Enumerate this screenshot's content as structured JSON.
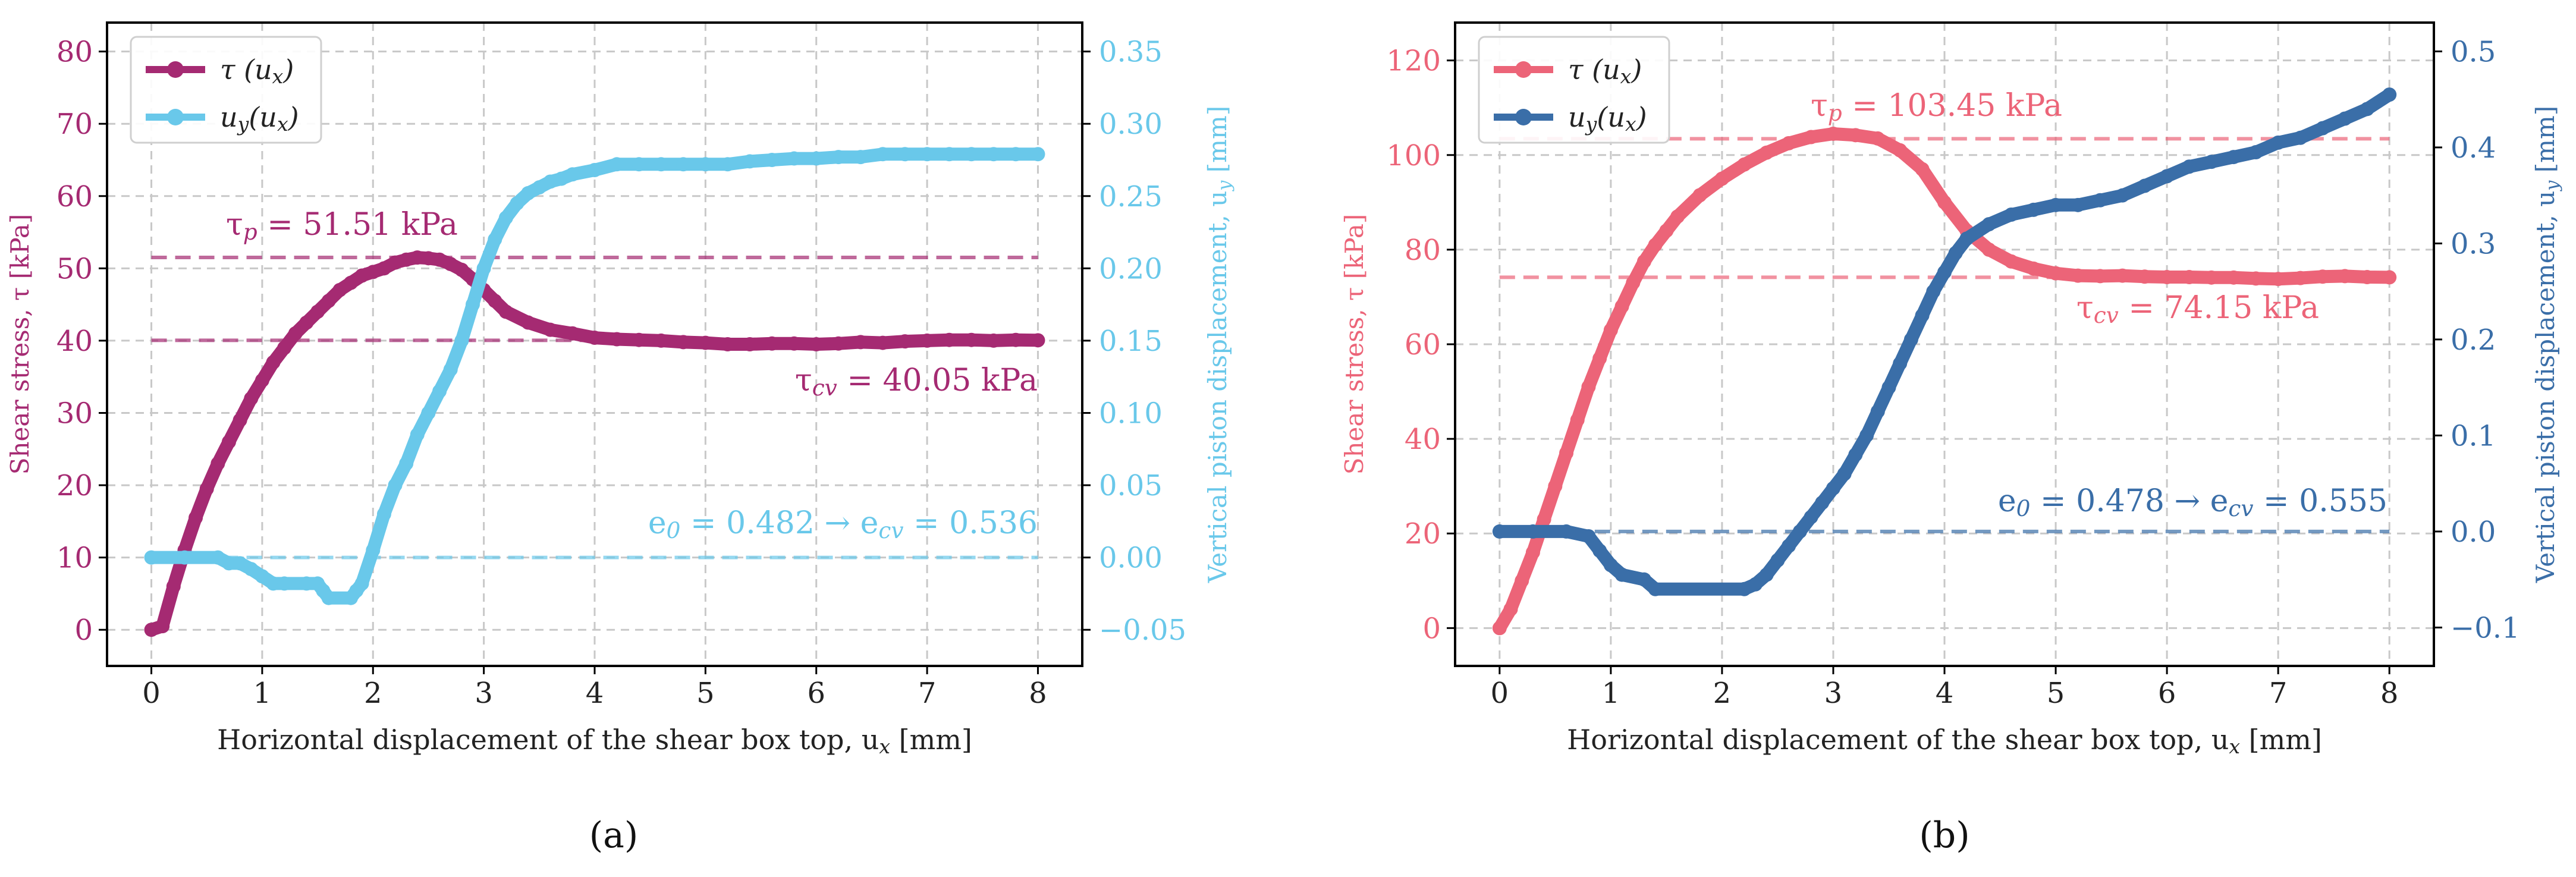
{
  "figure": {
    "panels": [
      {
        "id": "a",
        "caption": "(a)"
      },
      {
        "id": "b",
        "caption": "(b)"
      }
    ]
  },
  "chart_data": [
    {
      "type": "line",
      "panel": "a",
      "caption": "(a)",
      "title": "",
      "xlabel": "Horizontal displacement of the shear box top, u_x [mm]",
      "ylabel_left": "Shear stress, τ [kPa]",
      "ylabel_right": "Vertical piston displacement, u_y [mm]",
      "xlim": [
        -0.4,
        8.4
      ],
      "ylim_left": [
        -5,
        84
      ],
      "ylim_right": [
        -0.075,
        0.37
      ],
      "xticks": [
        0,
        1,
        2,
        3,
        4,
        5,
        6,
        7,
        8
      ],
      "yticks_left": [
        0,
        10,
        20,
        30,
        40,
        50,
        60,
        70,
        80
      ],
      "yticks_right": [
        -0.05,
        0.0,
        0.05,
        0.1,
        0.15,
        0.2,
        0.25,
        0.3,
        0.35
      ],
      "ytick_labels_right": [
        "−0.05",
        "0.00",
        "0.05",
        "0.10",
        "0.15",
        "0.20",
        "0.25",
        "0.30",
        "0.35"
      ],
      "grid": true,
      "legend": {
        "position": "top-left",
        "entries": [
          "τ (u_x)",
          "u_y(u_x)"
        ]
      },
      "colors": {
        "tau": "#a52a72",
        "uy": "#69c8ea"
      },
      "series": [
        {
          "name": "τ (u_x)",
          "axis": "left",
          "x": [
            0,
            0.1,
            0.2,
            0.3,
            0.4,
            0.5,
            0.6,
            0.7,
            0.8,
            0.9,
            1.0,
            1.1,
            1.2,
            1.3,
            1.4,
            1.5,
            1.6,
            1.7,
            1.8,
            1.9,
            2.0,
            2.1,
            2.2,
            2.3,
            2.4,
            2.5,
            2.6,
            2.7,
            2.8,
            2.9,
            3.0,
            3.1,
            3.2,
            3.4,
            3.6,
            3.8,
            4.0,
            4.2,
            4.4,
            4.6,
            4.8,
            5.0,
            5.2,
            5.4,
            5.6,
            5.8,
            6.0,
            6.2,
            6.4,
            6.6,
            6.8,
            7.0,
            7.2,
            7.4,
            7.6,
            7.8,
            8.0
          ],
          "y": [
            0,
            0.5,
            6,
            11,
            15.5,
            19.5,
            23,
            26,
            29,
            32,
            34.5,
            37,
            39,
            41,
            42.5,
            44,
            45.5,
            47,
            48,
            49,
            49.5,
            50,
            50.8,
            51.2,
            51.5,
            51.4,
            51.2,
            50.6,
            49.8,
            48.5,
            47,
            45.5,
            44,
            42.5,
            41.5,
            41,
            40.4,
            40.2,
            40.1,
            40,
            39.8,
            39.7,
            39.5,
            39.5,
            39.6,
            39.6,
            39.5,
            39.6,
            39.8,
            39.7,
            39.9,
            40,
            40.1,
            40.1,
            40,
            40.1,
            40.05
          ]
        },
        {
          "name": "u_y(u_x)",
          "axis": "right",
          "x": [
            0,
            0.3,
            0.6,
            0.7,
            0.8,
            0.9,
            1.0,
            1.1,
            1.2,
            1.4,
            1.5,
            1.55,
            1.6,
            1.8,
            1.85,
            1.9,
            2.0,
            2.1,
            2.2,
            2.3,
            2.4,
            2.5,
            2.6,
            2.7,
            2.8,
            2.9,
            3.0,
            3.1,
            3.2,
            3.3,
            3.4,
            3.5,
            3.6,
            3.7,
            3.8,
            4.0,
            4.2,
            4.4,
            4.6,
            4.8,
            5.0,
            5.2,
            5.4,
            5.6,
            5.8,
            6.0,
            6.2,
            6.4,
            6.6,
            6.8,
            7.0,
            7.2,
            7.4,
            7.6,
            7.8,
            8.0
          ],
          "y": [
            0.0,
            0.0,
            0.0,
            -0.004,
            -0.004,
            -0.008,
            -0.013,
            -0.018,
            -0.018,
            -0.018,
            -0.018,
            -0.023,
            -0.028,
            -0.028,
            -0.023,
            -0.018,
            0.005,
            0.03,
            0.05,
            0.065,
            0.085,
            0.1,
            0.115,
            0.13,
            0.15,
            0.175,
            0.2,
            0.22,
            0.235,
            0.245,
            0.252,
            0.256,
            0.26,
            0.262,
            0.265,
            0.268,
            0.272,
            0.272,
            0.272,
            0.272,
            0.272,
            0.272,
            0.274,
            0.275,
            0.276,
            0.276,
            0.277,
            0.277,
            0.279,
            0.279,
            0.279,
            0.279,
            0.279,
            0.279,
            0.279,
            0.279
          ]
        }
      ],
      "reference_lines": [
        {
          "axis": "left",
          "value": 51.51,
          "label": "τ_p = 51.51 kPa"
        },
        {
          "axis": "left",
          "value": 40.05,
          "label": "τ_cv = 40.05 kPa"
        },
        {
          "axis": "right",
          "value": 0.0,
          "label": "e_0 = 0.482 → e_cv = 0.536"
        }
      ]
    },
    {
      "type": "line",
      "panel": "b",
      "caption": "(b)",
      "title": "",
      "xlabel": "Horizontal displacement of the shear box top, u_x [mm]",
      "ylabel_left": "Shear stress, τ [kPa]",
      "ylabel_right": "Vertical piston displacement, u_y [mm]",
      "xlim": [
        -0.4,
        8.4
      ],
      "ylim_left": [
        -8,
        128
      ],
      "ylim_right": [
        -0.14,
        0.53
      ],
      "xticks": [
        0,
        1,
        2,
        3,
        4,
        5,
        6,
        7,
        8
      ],
      "yticks_left": [
        0,
        20,
        40,
        60,
        80,
        100,
        120
      ],
      "yticks_right": [
        -0.1,
        0.0,
        0.1,
        0.2,
        0.3,
        0.4,
        0.5
      ],
      "ytick_labels_right": [
        "−0.1",
        "0.0",
        "0.1",
        "0.2",
        "0.3",
        "0.4",
        "0.5"
      ],
      "grid": true,
      "legend": {
        "position": "top-left",
        "entries": [
          "τ (u_x)",
          "u_y(u_x)"
        ]
      },
      "colors": {
        "tau": "#ec6478",
        "uy": "#3a6ea8"
      },
      "series": [
        {
          "name": "τ (u_x)",
          "axis": "left",
          "x": [
            0,
            0.1,
            0.2,
            0.3,
            0.4,
            0.5,
            0.6,
            0.7,
            0.8,
            0.9,
            1.0,
            1.1,
            1.2,
            1.3,
            1.4,
            1.5,
            1.6,
            1.8,
            2.0,
            2.2,
            2.4,
            2.6,
            2.8,
            3.0,
            3.2,
            3.4,
            3.6,
            3.8,
            4.0,
            4.2,
            4.4,
            4.6,
            4.8,
            5.0,
            5.2,
            5.4,
            5.6,
            5.8,
            6.0,
            6.2,
            6.4,
            6.6,
            6.8,
            7.0,
            7.2,
            7.4,
            7.6,
            7.8,
            8.0
          ],
          "y": [
            0,
            4,
            10,
            16,
            23,
            30,
            37,
            44,
            51,
            57,
            63,
            68,
            73,
            77.5,
            81,
            84,
            87,
            91.5,
            95,
            98,
            100.5,
            102.5,
            103.8,
            104.5,
            104.2,
            103.5,
            101,
            97,
            90,
            84,
            80,
            77.5,
            76,
            75,
            74.5,
            74.4,
            74.5,
            74.3,
            74.2,
            74.2,
            74.1,
            74.1,
            73.9,
            73.8,
            74,
            74.3,
            74.4,
            74.2,
            74.15
          ]
        },
        {
          "name": "u_y(u_x)",
          "axis": "right",
          "x": [
            0,
            0.3,
            0.6,
            0.8,
            0.9,
            1.0,
            1.1,
            1.3,
            1.4,
            2.2,
            2.3,
            2.4,
            2.5,
            2.6,
            2.7,
            2.8,
            2.9,
            3.0,
            3.1,
            3.2,
            3.3,
            3.4,
            3.5,
            3.6,
            3.7,
            3.8,
            3.9,
            4.0,
            4.1,
            4.2,
            4.4,
            4.6,
            4.8,
            5.0,
            5.2,
            5.4,
            5.6,
            5.8,
            6.0,
            6.2,
            6.4,
            6.6,
            6.8,
            7.0,
            7.2,
            7.4,
            7.6,
            7.8,
            8.0
          ],
          "y": [
            0.0,
            0.0,
            0.0,
            -0.005,
            -0.02,
            -0.035,
            -0.045,
            -0.05,
            -0.06,
            -0.06,
            -0.055,
            -0.045,
            -0.03,
            -0.015,
            0.0,
            0.015,
            0.03,
            0.045,
            0.06,
            0.08,
            0.1,
            0.125,
            0.15,
            0.175,
            0.2,
            0.225,
            0.25,
            0.27,
            0.29,
            0.305,
            0.32,
            0.33,
            0.335,
            0.34,
            0.34,
            0.345,
            0.35,
            0.36,
            0.37,
            0.38,
            0.385,
            0.39,
            0.395,
            0.405,
            0.41,
            0.42,
            0.43,
            0.44,
            0.455
          ]
        }
      ],
      "reference_lines": [
        {
          "axis": "left",
          "value": 103.45,
          "label": "τ_p = 103.45 kPa"
        },
        {
          "axis": "left",
          "value": 74.15,
          "label": "τ_cv = 74.15 kPa"
        },
        {
          "axis": "right",
          "value": 0.0,
          "label": "e_0 = 0.478 → e_cv = 0.555"
        }
      ]
    }
  ]
}
